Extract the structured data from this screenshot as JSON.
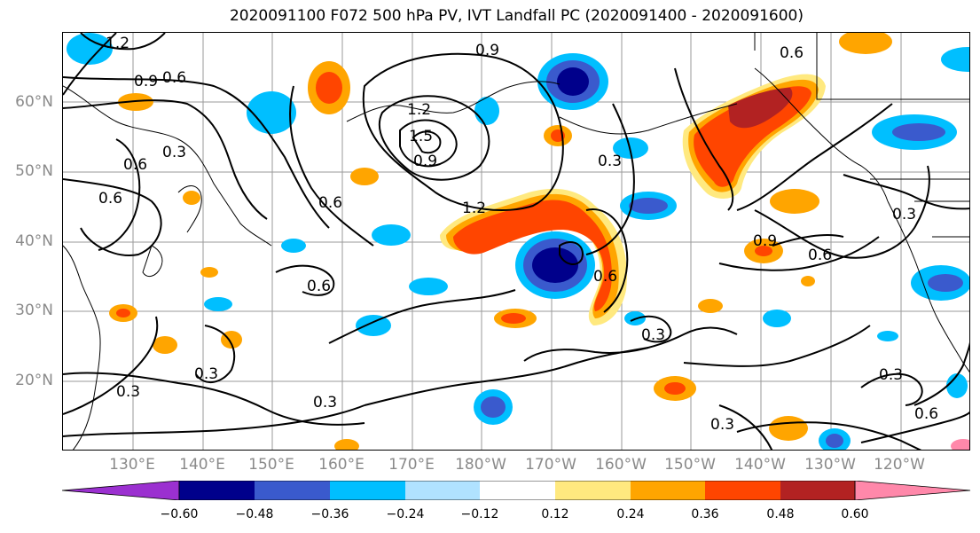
{
  "title": "2020091100 F072 500 hPa PV, IVT Landfall PC (2020091400 - 2020091600)",
  "lat_labels": [
    "60°N",
    "50°N",
    "40°N",
    "30°N",
    "20°N"
  ],
  "lon_labels": [
    "130°E",
    "140°E",
    "150°E",
    "160°E",
    "170°E",
    "180°W",
    "170°W",
    "160°W",
    "150°W",
    "140°W",
    "130°W",
    "120°W"
  ],
  "contour_labels": [
    "1.2",
    "0.9",
    "0.6",
    "0.3",
    "1.2",
    "1.5",
    "0.9",
    "0.6",
    "0.9",
    "0.3",
    "0.6",
    "1.2",
    "0.6",
    "0.6",
    "0.3",
    "0.3",
    "0.3",
    "0.3",
    "0.3",
    "0.6",
    "0.6",
    "0.9",
    "0.3",
    "0.6",
    "0.3",
    "0.6"
  ],
  "colorbar": {
    "ticks": [
      "−0.60",
      "−0.48",
      "−0.36",
      "−0.24",
      "−0.12",
      "0.12",
      "0.24",
      "0.36",
      "0.48",
      "0.60"
    ],
    "colors": [
      "#9b30d0",
      "#00008b",
      "#3a5acd",
      "#00bfff",
      "#b0e2ff",
      "#ffffff",
      "#ffe97f",
      "#ffa500",
      "#ff4500",
      "#b22222",
      "#ff88aa"
    ]
  },
  "colors": {
    "neg_strong": "#2c2ca8",
    "neg_mid": "#3a5acd",
    "neg_light": "#00bfff",
    "pos_light": "#ffe97f",
    "pos_mid": "#ffa500",
    "pos_strong": "#ff4500",
    "pos_max": "#b22222"
  }
}
